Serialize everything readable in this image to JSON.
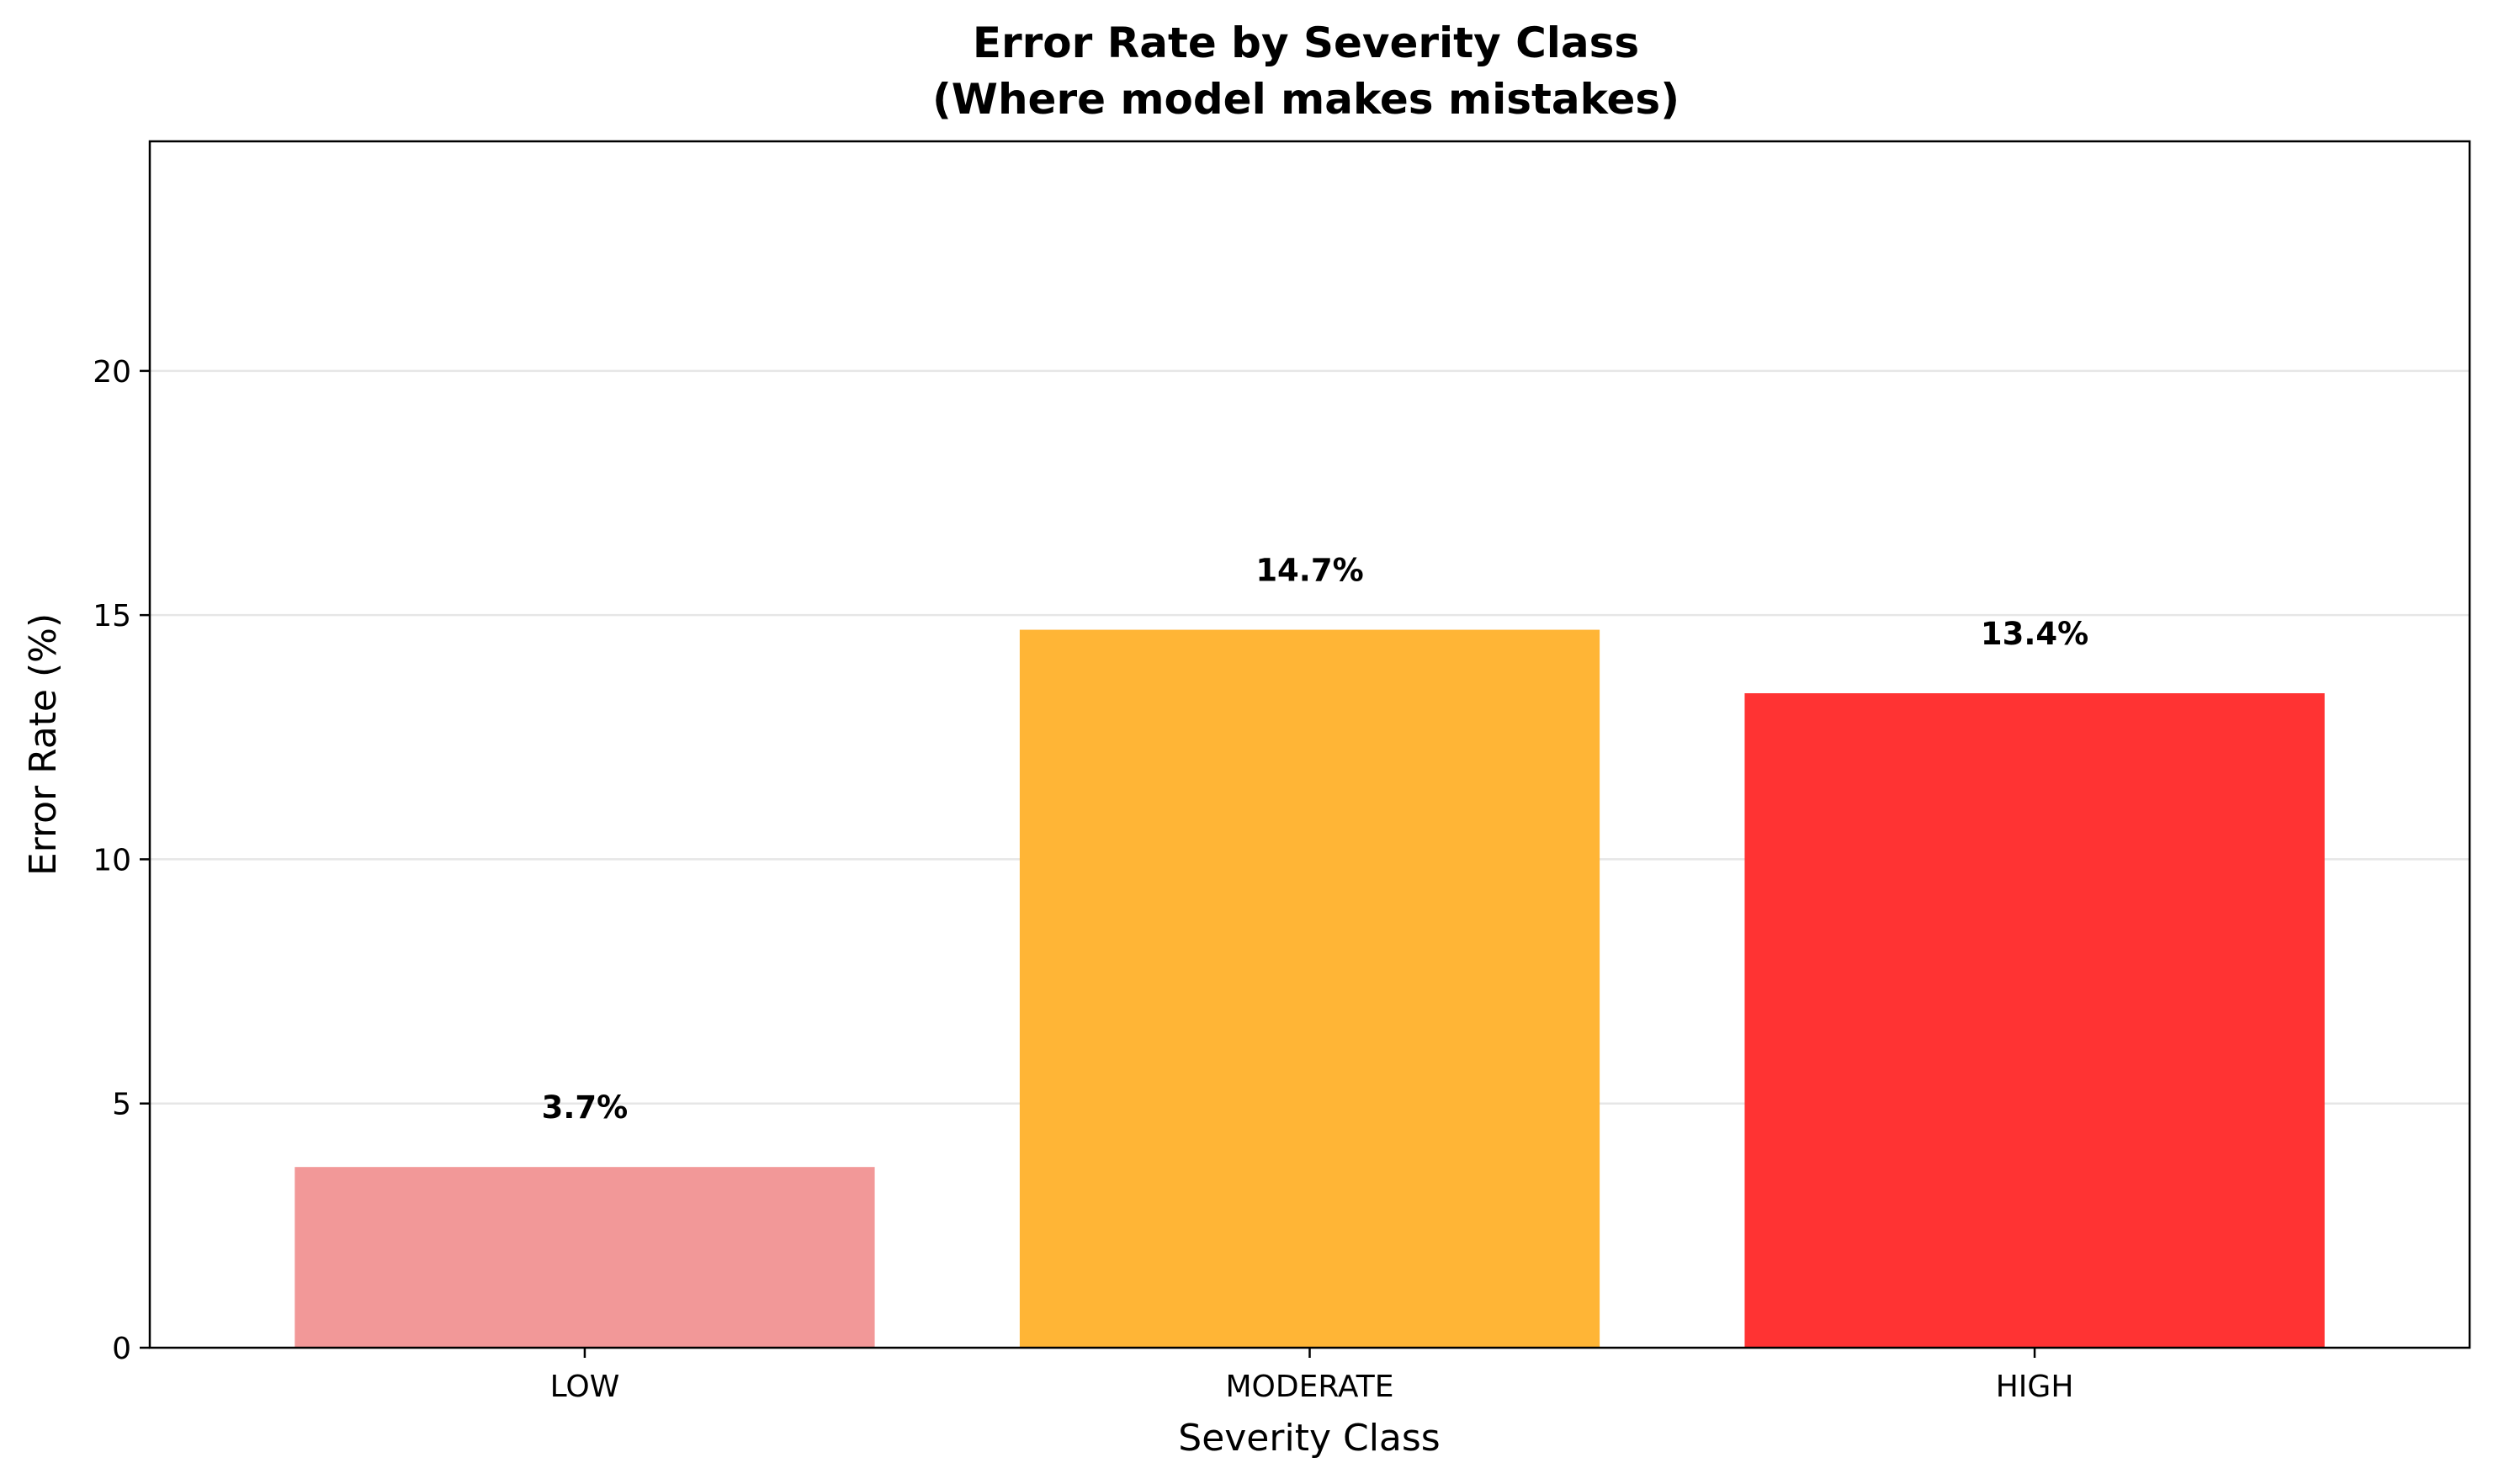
{
  "chart_data": {
    "type": "bar",
    "title_line1": "Error Rate by Severity Class",
    "title_line2": "(Where model makes mistakes)",
    "xlabel": "Severity Class",
    "ylabel": "Error Rate (%)",
    "categories": [
      "LOW",
      "MODERATE",
      "HIGH"
    ],
    "values": [
      3.7,
      14.7,
      13.4
    ],
    "value_labels": [
      "3.7%",
      "14.7%",
      "13.4%"
    ],
    "colors": [
      "#f29898",
      "#ffb536",
      "#ff3333"
    ],
    "ylim": [
      0,
      24.7
    ],
    "yticks": [
      0,
      5,
      10,
      15,
      20
    ],
    "ytick_labels": [
      "0",
      "5",
      "10",
      "15",
      "20"
    ],
    "grid": "y-axis major, light gray",
    "legend": "none"
  }
}
